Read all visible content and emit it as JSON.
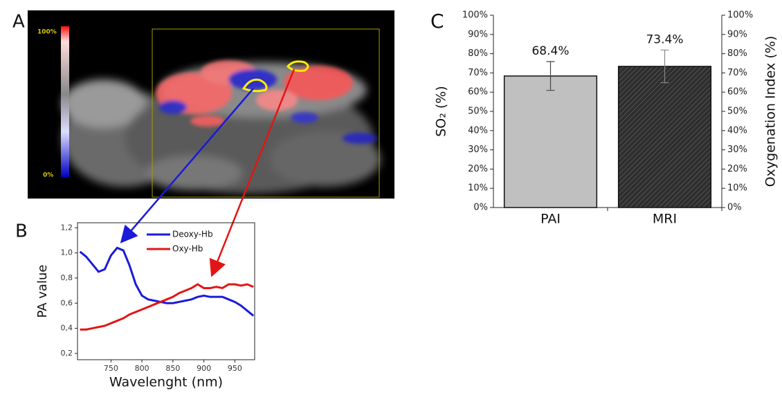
{
  "image": {
    "panel": "A",
    "colorbar_max": "100%",
    "colorbar_min": "0%"
  },
  "chart_data": [
    {
      "type": "line",
      "panel": "B",
      "xlabel": "Wavelenght (nm)",
      "ylabel": "PA value",
      "xlim": [
        696,
        982
      ],
      "xticks": [
        750,
        800,
        850,
        900,
        950
      ],
      "ylim": [
        0.15,
        1.24
      ],
      "yticks": [
        {
          "value": 0.2,
          "label": "0,2"
        },
        {
          "value": 0.4,
          "label": "0,4"
        },
        {
          "value": 0.6,
          "label": "0,6"
        },
        {
          "value": 0.8,
          "label": "0,8"
        },
        {
          "value": 1.0,
          "label": "1,0"
        },
        {
          "value": 1.2,
          "label": "1,2"
        }
      ],
      "x": [
        700,
        710,
        720,
        730,
        740,
        750,
        760,
        770,
        780,
        790,
        800,
        810,
        820,
        830,
        840,
        850,
        860,
        870,
        880,
        890,
        900,
        910,
        920,
        930,
        940,
        950,
        960,
        970,
        980
      ],
      "series": [
        {
          "name": "Deoxy-Hb",
          "color": "#1a1ad8",
          "values": [
            1.01,
            0.97,
            0.91,
            0.85,
            0.87,
            0.98,
            1.04,
            1.02,
            0.9,
            0.75,
            0.66,
            0.63,
            0.62,
            0.61,
            0.6,
            0.6,
            0.61,
            0.62,
            0.63,
            0.65,
            0.66,
            0.65,
            0.65,
            0.65,
            0.63,
            0.61,
            0.58,
            0.54,
            0.5
          ]
        },
        {
          "name": "Oxy-Hb",
          "color": "#e41414",
          "values": [
            0.39,
            0.39,
            0.4,
            0.41,
            0.42,
            0.44,
            0.46,
            0.48,
            0.51,
            0.53,
            0.55,
            0.57,
            0.59,
            0.61,
            0.63,
            0.65,
            0.68,
            0.7,
            0.72,
            0.75,
            0.72,
            0.72,
            0.73,
            0.72,
            0.75,
            0.75,
            0.74,
            0.75,
            0.73
          ]
        }
      ]
    },
    {
      "type": "bar",
      "panel": "C",
      "ylabel": "SO₂ (%)",
      "y2label": "Oxygenation Index (%)",
      "categories": [
        "PAI",
        "MRI"
      ],
      "values": [
        68.4,
        73.4
      ],
      "value_labels": [
        "68.4%",
        "73.4%"
      ],
      "errors": [
        7.5,
        8.5
      ],
      "colors": [
        "#c0c0c0",
        "#2e2e2e"
      ],
      "hatch": [
        false,
        true
      ],
      "ylim": [
        0,
        100
      ],
      "y2lim": [
        0,
        100
      ],
      "yticks": [
        {
          "value": 0,
          "label": "0%"
        },
        {
          "value": 10,
          "label": "10%"
        },
        {
          "value": 20,
          "label": "20%"
        },
        {
          "value": 30,
          "label": "30%"
        },
        {
          "value": 40,
          "label": "40%"
        },
        {
          "value": 50,
          "label": "50%"
        },
        {
          "value": 60,
          "label": "60%"
        },
        {
          "value": 70,
          "label": "70%"
        },
        {
          "value": 80,
          "label": "80%"
        },
        {
          "value": 90,
          "label": "90%"
        },
        {
          "value": 100,
          "label": "100%"
        }
      ],
      "y2ticks": [
        {
          "value": 0,
          "label": "0%"
        },
        {
          "value": 10,
          "label": "10%"
        },
        {
          "value": 20,
          "label": "20%"
        },
        {
          "value": 30,
          "label": "30%"
        },
        {
          "value": 40,
          "label": "40%"
        },
        {
          "value": 50,
          "label": "50%"
        },
        {
          "value": 60,
          "label": "60%"
        },
        {
          "value": 70,
          "label": "70%"
        },
        {
          "value": 80,
          "label": "80%"
        },
        {
          "value": 90,
          "label": "90%"
        },
        {
          "value": 100,
          "label": "100%"
        }
      ]
    }
  ]
}
